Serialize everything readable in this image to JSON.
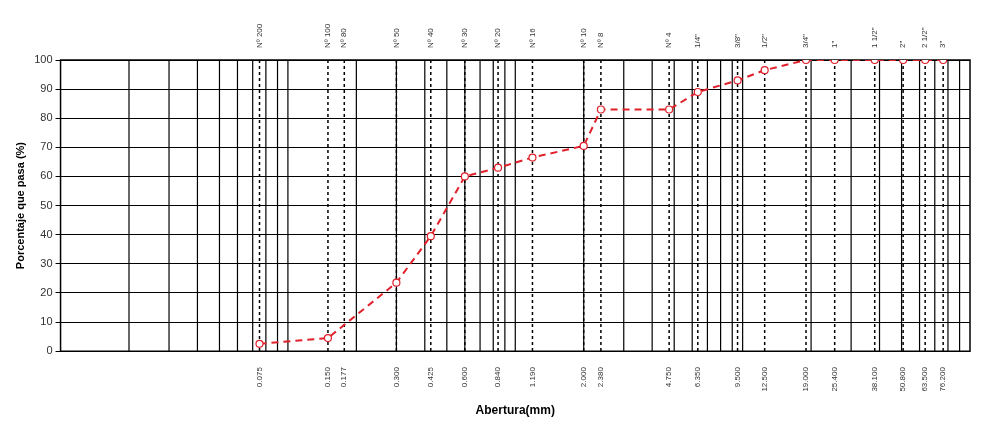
{
  "chart_data": {
    "type": "line",
    "xlabel": "Abertura(mm)",
    "ylabel": "Porcentaje que pasa (%)",
    "log": "x",
    "grid": true,
    "marker": "circle",
    "line_style": "dashed",
    "legend": false,
    "xlim": [
      0.01,
      100
    ],
    "ylim": [
      0,
      100
    ],
    "yticks": [
      0,
      10,
      20,
      30,
      40,
      50,
      60,
      70,
      80,
      90,
      100
    ],
    "xticks": [
      0.075,
      {
        "value": 0.15,
        "label": "0.150"
      },
      0.177,
      {
        "value": 0.3,
        "label": "0.300"
      },
      0.425,
      {
        "value": 0.6,
        "label": "0.600"
      },
      {
        "value": 0.84,
        "label": "0.840"
      },
      {
        "value": 1.19,
        "label": "1.190"
      },
      {
        "value": 2,
        "label": "2.000"
      },
      {
        "value": 2.38,
        "label": "2.380"
      },
      {
        "value": 4.75,
        "label": "4.750"
      },
      {
        "value": 6.35,
        "label": "6.350"
      },
      {
        "value": 9.5,
        "label": "9.500"
      },
      {
        "value": 12.5,
        "label": "12.500"
      },
      {
        "value": 19,
        "label": "19.000"
      },
      {
        "value": 25.4,
        "label": "25.400"
      },
      {
        "value": 38.1,
        "label": "38.100"
      },
      {
        "value": 50.8,
        "label": "50.800"
      },
      {
        "value": 63.5,
        "label": "63.500"
      },
      {
        "value": 76.2,
        "label": "76.200"
      }
    ],
    "annotations": [
      "Nº 200",
      "Nº 100",
      "Nº 80",
      "Nº 50",
      "Nº 40",
      "Nº 30",
      "Nº 20",
      "Nº 16",
      "Nº 10",
      "Nº 8",
      "Nº 4",
      "1/4\"",
      "3/8\"",
      "1/2\"",
      "3/4\"",
      "1\"",
      "1 1/2\"",
      "2\"",
      "2 1/2\"",
      "3\""
    ],
    "x": [
      0.075,
      0.15,
      0.3,
      0.425,
      0.6,
      0.84,
      1.19,
      2,
      2.38,
      4.75,
      6.35,
      9.5,
      12.5,
      19,
      25.4,
      38.1,
      50.8,
      63.5,
      76.2
    ],
    "series": [
      {
        "color": "#e0202a",
        "values": [
          2.5,
          4.5,
          23.5,
          39.5,
          60,
          63,
          66.5,
          70.5,
          83,
          83,
          89,
          93,
          96.5,
          100,
          100,
          100,
          100,
          100,
          100
        ]
      }
    ]
  }
}
